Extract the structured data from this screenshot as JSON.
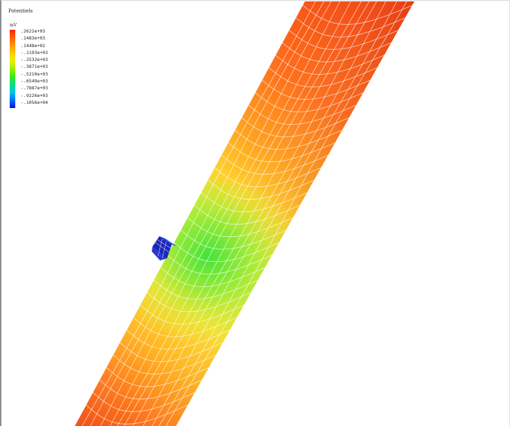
{
  "title": "Potentiels",
  "legend": {
    "unit": "mV",
    "labels": [
      ".2622e+03",
      ".1483e+03",
      ".1448e+02",
      "-.1193e+03",
      "-.2532e+03",
      "-.3871e+03",
      "-.5210e+03",
      "-.6549e+03",
      "-.7887e+03",
      "-.9226e+03",
      "-.1056e+04"
    ]
  }
}
